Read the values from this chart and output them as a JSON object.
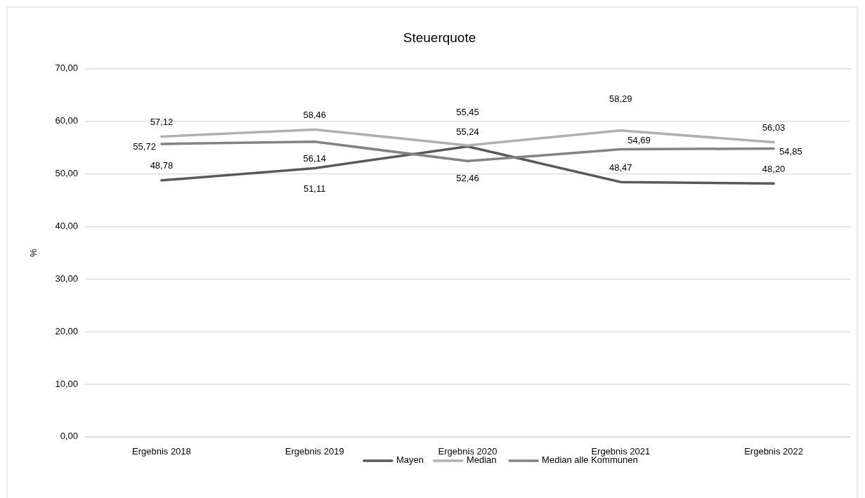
{
  "chart_data": {
    "type": "line",
    "title": "Steuerquote",
    "ylabel": "%",
    "categories": [
      "Ergebnis 2018",
      "Ergebnis 2019",
      "Ergebnis 2020",
      "Ergebnis 2021",
      "Ergebnis 2022"
    ],
    "series": [
      {
        "name": "Mayen",
        "color": "#595959",
        "values": [
          48.78,
          51.11,
          55.24,
          48.47,
          48.2
        ],
        "value_labels": [
          "48,78",
          "51,11",
          "55,24",
          "48,47",
          "48,20"
        ]
      },
      {
        "name": "Median",
        "color": "#b0b0b0",
        "values": [
          57.12,
          58.46,
          55.45,
          58.29,
          56.03
        ],
        "value_labels": [
          "57,12",
          "58,46",
          "55,45",
          "58,29",
          "56,03"
        ]
      },
      {
        "name": "Median alle Kommunen",
        "color": "#828282",
        "values": [
          55.72,
          56.14,
          52.46,
          54.69,
          54.85
        ],
        "value_labels": [
          "55,72",
          "56,14",
          "52,46",
          "54,69",
          "54,85"
        ]
      }
    ],
    "ylim": [
      0,
      70
    ],
    "yticks": [
      {
        "value": 0,
        "label": "0,00"
      },
      {
        "value": 10,
        "label": "10,00"
      },
      {
        "value": 20,
        "label": "20,00"
      },
      {
        "value": 30,
        "label": "30,00"
      },
      {
        "value": 40,
        "label": "40,00"
      },
      {
        "value": 50,
        "label": "50,00"
      },
      {
        "value": 60,
        "label": "60,00"
      },
      {
        "value": 70,
        "label": "70,00"
      }
    ],
    "grid": "y",
    "legend": "bottom",
    "marker": "none",
    "line_style": "solid"
  }
}
